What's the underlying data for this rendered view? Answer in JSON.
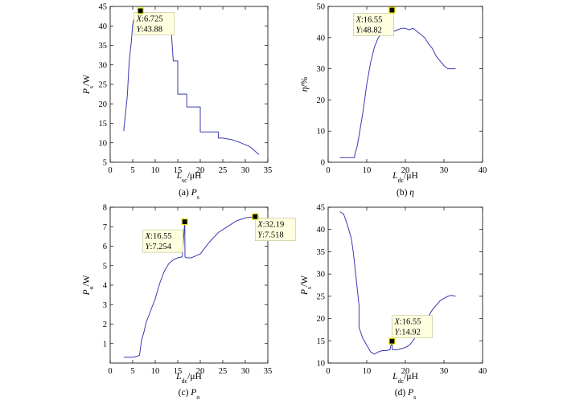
{
  "chart_data": [
    {
      "id": "a",
      "type": "line",
      "xlim": [
        0,
        35
      ],
      "ylim": [
        5,
        45
      ],
      "xticks": [
        0,
        5,
        10,
        15,
        20,
        25,
        30,
        35
      ],
      "yticks": [
        5,
        10,
        15,
        20,
        25,
        30,
        35,
        40,
        45
      ],
      "ylabel_main": "P",
      "ylabel_sub": "s",
      "ylabel_unit": "/W",
      "xlabel_main": "L",
      "xlabel_sub": "sc",
      "xlabel_unit": "/μH",
      "caption_prefix": "(a) ",
      "caption_main": "P",
      "caption_sub": "s",
      "x": [
        3.0,
        3.3,
        3.8,
        4.2,
        4.7,
        5.0,
        5.5,
        6.0,
        6.5,
        6.725,
        7.0,
        7.5,
        8.5,
        10.5,
        12.5,
        13.5,
        14.0,
        14.0,
        15.0,
        15.0,
        17.0,
        17.0,
        20.0,
        20.0,
        24.0,
        24.0,
        25.0,
        27.0,
        29.0,
        30.0,
        31.0,
        32.0,
        32.5,
        33.0
      ],
      "y": [
        13.0,
        16.5,
        22.0,
        30.5,
        36.0,
        40.5,
        42.5,
        43.2,
        43.6,
        43.88,
        43.5,
        42.0,
        40.5,
        40.0,
        40.0,
        39.8,
        31.0,
        31.0,
        31.0,
        22.5,
        22.5,
        19.2,
        19.2,
        12.8,
        12.8,
        11.2,
        11.2,
        10.8,
        10.0,
        9.5,
        9.0,
        8.0,
        7.5,
        7.0
      ],
      "point": {
        "x": 6.725,
        "y": 43.88
      },
      "annotation": {
        "x_label": "X",
        "x_value": ":6.725",
        "y_label": "Y",
        "y_value": ":43.88"
      }
    },
    {
      "id": "b",
      "type": "line",
      "xlim": [
        0,
        40
      ],
      "ylim": [
        0,
        50
      ],
      "xticks": [
        0,
        10,
        20,
        30,
        40
      ],
      "yticks": [
        0,
        10,
        20,
        30,
        40,
        50
      ],
      "ylabel_main": "η",
      "ylabel_sub": "",
      "ylabel_unit": "/%",
      "xlabel_main": "L",
      "xlabel_sub": "dc",
      "xlabel_unit": "/μH",
      "caption_prefix": "(b) ",
      "caption_main": "η",
      "caption_sub": "",
      "x": [
        3.0,
        5.0,
        6.8,
        7.0,
        7.5,
        8.0,
        9.0,
        10.0,
        11.0,
        12.0,
        13.0,
        14.0,
        15.0,
        16.0,
        16.55,
        16.6,
        17.0,
        18.0,
        19.0,
        20.0,
        21.0,
        22.0,
        23.0,
        24.0,
        25.0,
        26.0,
        27.0,
        28.0,
        29.0,
        30.0,
        31.0,
        32.0,
        33.0
      ],
      "y": [
        1.5,
        1.5,
        1.5,
        3.0,
        5.0,
        8.5,
        16.0,
        25.0,
        32.0,
        37.0,
        40.0,
        41.5,
        42.0,
        42.0,
        48.82,
        42.5,
        42.0,
        42.5,
        43.0,
        43.0,
        42.5,
        43.0,
        42.0,
        41.0,
        40.0,
        38.0,
        36.5,
        34.0,
        32.5,
        31.0,
        30.0,
        30.0,
        30.0
      ],
      "point": {
        "x": 16.55,
        "y": 48.82
      },
      "annotation": {
        "x_label": "X",
        "x_value": ":16.55",
        "y_label": "Y",
        "y_value": ":48.82"
      }
    },
    {
      "id": "c",
      "type": "line",
      "xlim": [
        0,
        35
      ],
      "ylim": [
        0,
        8
      ],
      "xticks": [
        0,
        5,
        10,
        15,
        20,
        25,
        30,
        35
      ],
      "yticks": [
        1,
        2,
        3,
        4,
        5,
        6,
        7,
        8
      ],
      "ylabel_main": "P",
      "ylabel_sub": "o",
      "ylabel_unit": "/W",
      "xlabel_main": "L",
      "xlabel_sub": "dc",
      "xlabel_unit": "/μH",
      "caption_prefix": "(c) ",
      "caption_main": "P",
      "caption_sub": "o",
      "x": [
        3.0,
        5.0,
        6.0,
        6.5,
        7.0,
        7.5,
        8.0,
        9.0,
        10.0,
        11.0,
        12.0,
        13.0,
        14.0,
        15.0,
        16.0,
        16.55,
        16.6,
        17.0,
        18.0,
        19.0,
        20.0,
        22.0,
        24.0,
        26.0,
        28.0,
        30.0,
        32.19,
        33.0
      ],
      "y": [
        0.3,
        0.3,
        0.35,
        0.4,
        1.2,
        1.6,
        2.1,
        2.7,
        3.3,
        4.1,
        4.7,
        5.1,
        5.3,
        5.4,
        5.45,
        7.254,
        5.45,
        5.4,
        5.4,
        5.5,
        5.6,
        6.2,
        6.7,
        7.0,
        7.3,
        7.45,
        7.518,
        7.5
      ],
      "point": {
        "x": 16.55,
        "y": 7.254
      },
      "point2": {
        "x": 32.19,
        "y": 7.518
      },
      "annotation": {
        "x_label": "X",
        "x_value": ":16.55",
        "y_label": "Y",
        "y_value": ":7.254"
      },
      "annotation2": {
        "x_label": "X",
        "x_value": ":32.19",
        "y_label": "Y",
        "y_value": ":7.518"
      }
    },
    {
      "id": "d",
      "type": "line",
      "xlim": [
        0,
        40
      ],
      "ylim": [
        10,
        45
      ],
      "xticks": [
        0,
        10,
        20,
        30,
        40
      ],
      "yticks": [
        10,
        15,
        20,
        25,
        30,
        35,
        40,
        45
      ],
      "ylabel_main": "P",
      "ylabel_sub": "s",
      "ylabel_unit": "/W",
      "xlabel_main": "L",
      "xlabel_sub": "dc",
      "xlabel_unit": "/μH",
      "caption_prefix": "(d) ",
      "caption_main": "P",
      "caption_sub": "s",
      "x": [
        3.0,
        4.0,
        5.0,
        6.0,
        6.5,
        7.0,
        7.0,
        8.0,
        8.0,
        9.0,
        10.0,
        11.0,
        12.0,
        13.0,
        14.0,
        15.0,
        16.0,
        16.55,
        16.6,
        17.0,
        18.0,
        20.0,
        21.0,
        22.0,
        23.0,
        24.0,
        25.0,
        26.0,
        27.0,
        28.0,
        29.0,
        30.0,
        31.0,
        32.0,
        33.0
      ],
      "y": [
        44.0,
        43.5,
        41.0,
        38.0,
        35.0,
        31.0,
        31.0,
        23.0,
        18.0,
        15.5,
        14.0,
        12.5,
        12.0,
        12.5,
        12.8,
        12.8,
        13.0,
        14.92,
        13.0,
        13.0,
        13.0,
        13.5,
        14.0,
        15.0,
        16.5,
        18.0,
        19.5,
        20.5,
        22.0,
        23.0,
        24.0,
        24.5,
        25.0,
        25.2,
        25.0
      ],
      "point": {
        "x": 16.55,
        "y": 14.92
      },
      "annotation": {
        "x_label": "X",
        "x_value": ":16.55",
        "y_label": "Y",
        "y_value": ":14.92"
      }
    }
  ]
}
